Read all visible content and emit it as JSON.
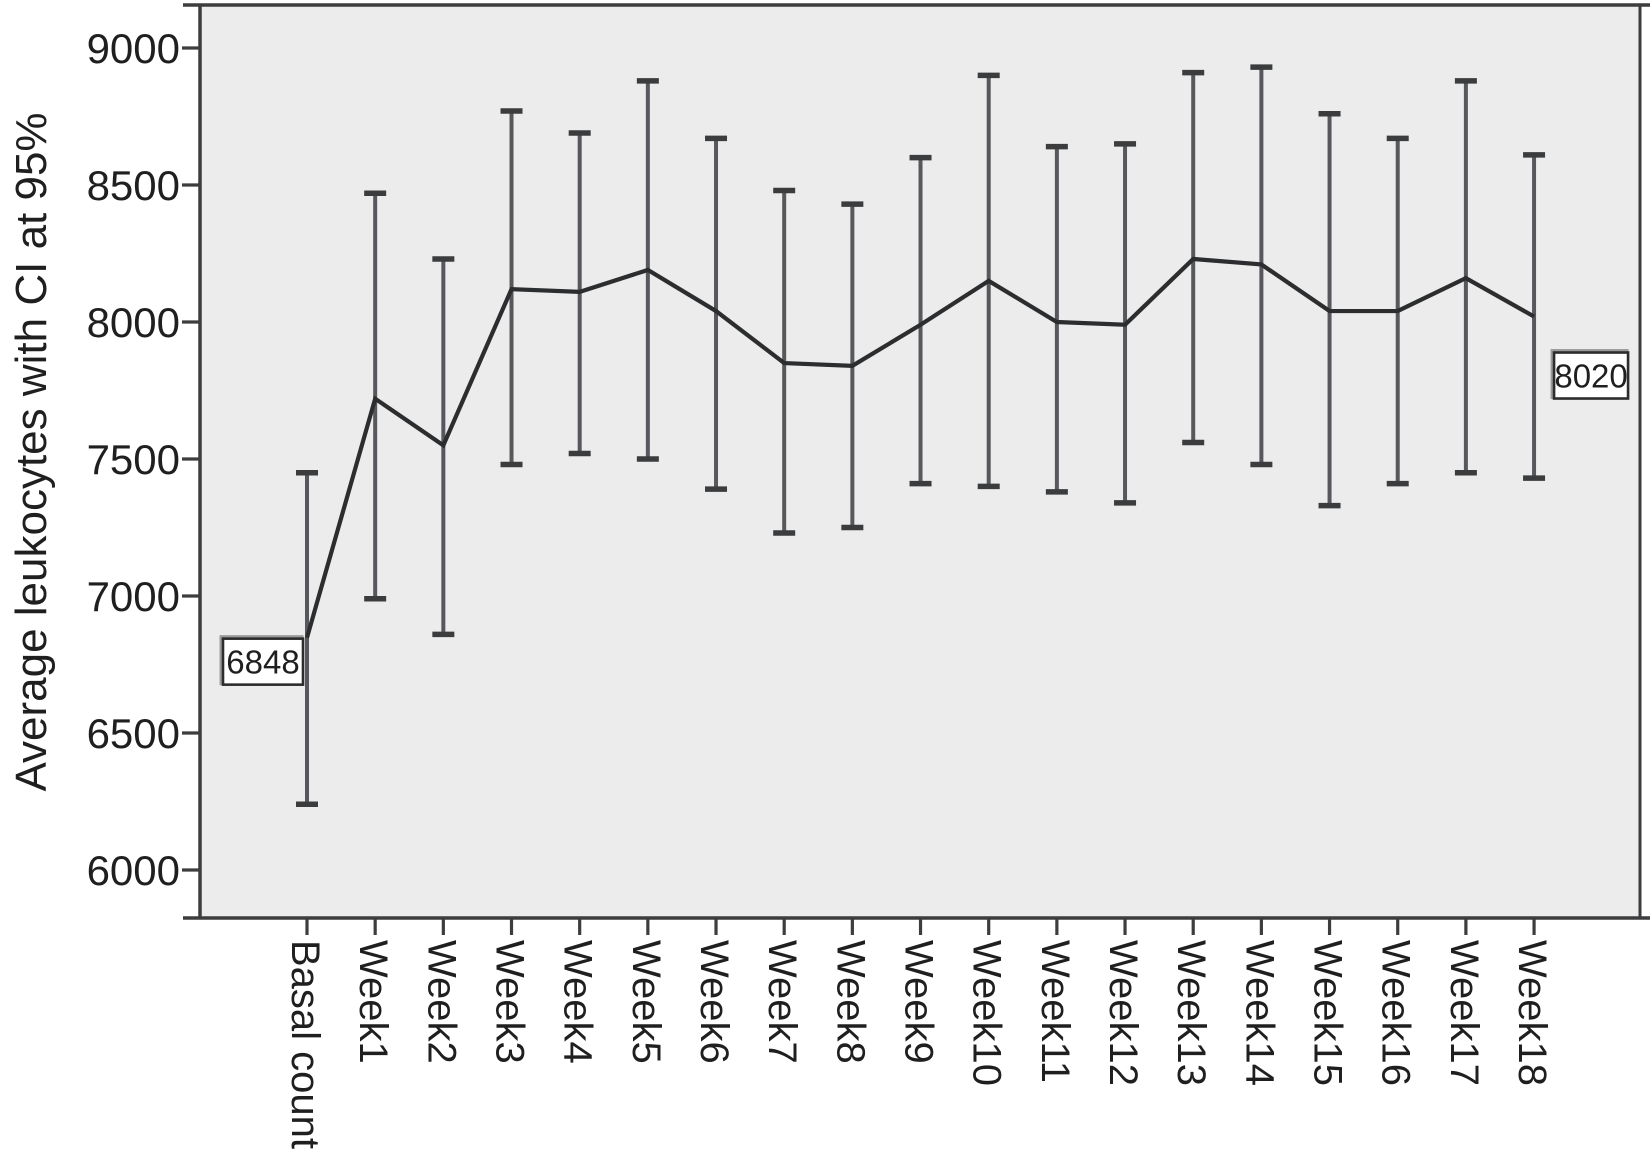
{
  "chart_data": {
    "type": "line",
    "title": "",
    "xlabel": "",
    "ylabel": "Average leukocytes with CI at 95%",
    "categories": [
      "Basal count",
      "Week1",
      "Week2",
      "Week3",
      "Week4",
      "Week5",
      "Week6",
      "Week7",
      "Week8",
      "Week9",
      "Week10",
      "Week11",
      "Week12",
      "Week13",
      "Week14",
      "Week15",
      "Week16",
      "Week17",
      "Week18"
    ],
    "series": [
      {
        "name": "Average leukocytes",
        "values": [
          6848,
          7720,
          7550,
          8120,
          8110,
          8190,
          8040,
          7850,
          7840,
          7990,
          8150,
          8000,
          7990,
          8230,
          8210,
          8040,
          8040,
          8160,
          8020
        ],
        "ci_upper": [
          7450,
          8470,
          8230,
          8770,
          8690,
          8880,
          8670,
          8480,
          8430,
          8600,
          8900,
          8640,
          8650,
          8910,
          8930,
          8760,
          8670,
          8880,
          8610
        ],
        "ci_lower": [
          6240,
          6990,
          6860,
          7480,
          7520,
          7500,
          7390,
          7230,
          7250,
          7410,
          7400,
          7380,
          7340,
          7560,
          7480,
          7330,
          7410,
          7450,
          7430
        ]
      }
    ],
    "yticks": [
      9000,
      8500,
      8000,
      7500,
      7000,
      6500,
      6000
    ],
    "ylim": [
      5830,
      9160
    ],
    "grid": false,
    "legend_position": "none",
    "error_bars": "95% CI",
    "annotations": [
      {
        "index": 0,
        "point": "Basal count",
        "label": "6848"
      },
      {
        "index": 18,
        "point": "Week18",
        "label": "8020"
      }
    ],
    "colors": {
      "page_bg": "#ffffff",
      "plot_bg": "#ececec",
      "frame": "#3d3d3f",
      "tick": "#3d3d3f",
      "line": "#2c2d2f",
      "error_bar": "#57585b",
      "error_cap": "#3b3c3e",
      "text": "#1f1f1f",
      "annotation_bg": "#ffffff",
      "annotation_border": "#2c2c2c",
      "annotation_shadow": "#9b9b9b"
    }
  }
}
